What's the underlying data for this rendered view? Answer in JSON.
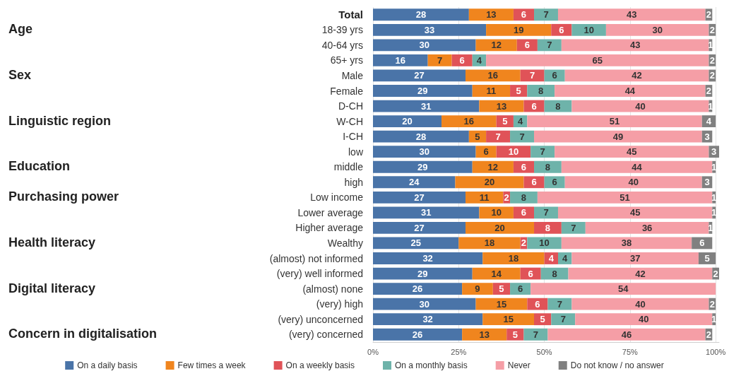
{
  "chart_data": {
    "type": "bar",
    "orientation": "horizontal",
    "stacked": true,
    "data_labels": true,
    "grid": "x",
    "legend": "bottom",
    "categories": [
      "Total",
      "18-39 yrs",
      "40-64 yrs",
      "65+ yrs",
      "Male",
      "Female",
      "D-CH",
      "W-CH",
      "I-CH",
      "low",
      "middle",
      "high",
      "Low income",
      "Lower average",
      "Higher average",
      "Wealthy",
      "(almost) not informed",
      "(very) well informed",
      "(almost) none",
      "(very) high",
      "(very) unconcerned",
      "(very) concerned"
    ],
    "series": [
      {
        "name": "On a daily basis",
        "color": "#4a74a8",
        "values": [
          28,
          33,
          30,
          16,
          27,
          29,
          31,
          20,
          28,
          30,
          29,
          24,
          27,
          31,
          27,
          25,
          32,
          29,
          26,
          30,
          32,
          26
        ]
      },
      {
        "name": "Few times a week",
        "color": "#f0851e",
        "values": [
          13,
          19,
          12,
          7,
          16,
          11,
          13,
          16,
          5,
          6,
          12,
          20,
          11,
          10,
          20,
          18,
          18,
          14,
          9,
          15,
          15,
          13
        ]
      },
      {
        "name": "On a weekly basis",
        "color": "#e05358",
        "values": [
          6,
          6,
          6,
          6,
          7,
          5,
          6,
          5,
          7,
          10,
          6,
          6,
          2,
          6,
          8,
          2,
          4,
          6,
          5,
          6,
          5,
          5
        ]
      },
      {
        "name": "On a monthly basis",
        "color": "#6eb3aa",
        "values": [
          7,
          10,
          7,
          4,
          6,
          8,
          8,
          4,
          7,
          7,
          8,
          6,
          8,
          7,
          7,
          10,
          4,
          8,
          6,
          7,
          7,
          7
        ]
      },
      {
        "name": "Never",
        "color": "#f59ea6",
        "values": [
          43,
          30,
          43,
          65,
          42,
          44,
          40,
          51,
          49,
          45,
          44,
          40,
          51,
          45,
          36,
          38,
          37,
          42,
          54,
          40,
          40,
          46
        ]
      },
      {
        "name": "Do not know / no answer",
        "color": "#808080",
        "values": [
          2,
          2,
          1,
          2,
          2,
          2,
          1,
          4,
          3,
          3,
          1,
          3,
          1,
          1,
          1,
          6,
          5,
          2,
          null,
          2,
          1,
          2
        ]
      }
    ],
    "xlim": [
      0,
      101
    ],
    "xticks": [
      {
        "value": 0,
        "label": "0%"
      },
      {
        "value": 25,
        "label": "25%"
      },
      {
        "value": 50,
        "label": "50%"
      },
      {
        "value": 75,
        "label": "75%"
      },
      {
        "value": 100,
        "label": "100%"
      }
    ],
    "annotations": [
      "Age",
      "Sex",
      "Linguistic region",
      "Education",
      "Purchasing power",
      "Health literacy",
      "Digital literacy",
      "Concern in digitalisation"
    ]
  }
}
